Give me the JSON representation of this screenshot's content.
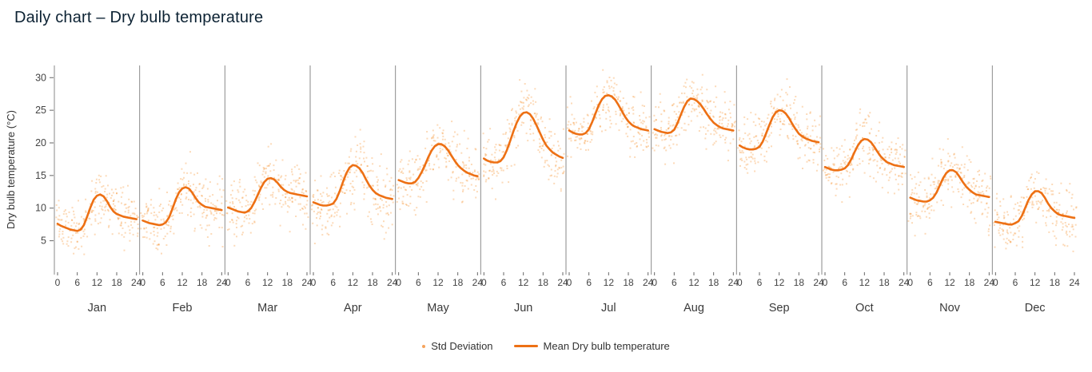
{
  "colors": {
    "title": "#0c2233",
    "axis_text": "#444444",
    "month_text": "#3a3a3a",
    "separator": "#8a8a8a",
    "tick": "#666666",
    "mean_line": "#ed7014",
    "scatter": "#f58518",
    "legend_text": "#333333"
  },
  "chart_data": {
    "type": "scatter",
    "title": "Daily chart – Dry bulb temperature",
    "xlabel": "",
    "ylabel": "Dry bulb temperature (°C)",
    "ylim": [
      0.3,
      31.5
    ],
    "yticks": [
      5,
      10,
      15,
      20,
      25,
      30
    ],
    "xticks": [
      0,
      6,
      12,
      18,
      24
    ],
    "grid": false,
    "legend_position": "bottom-center",
    "legend": {
      "std": "Std Deviation",
      "mean": "Mean Dry bulb temperature"
    },
    "hours": [
      0,
      1,
      2,
      3,
      4,
      5,
      6,
      7,
      8,
      9,
      10,
      11,
      12,
      13,
      14,
      15,
      16,
      17,
      18,
      19,
      20,
      21,
      22,
      23,
      24
    ],
    "months": [
      {
        "label": "Jan",
        "std": 2.1,
        "mean": [
          7.6,
          7.3,
          7.1,
          6.9,
          6.7,
          6.6,
          6.5,
          6.7,
          7.4,
          8.7,
          10.1,
          11.3,
          11.9,
          12.1,
          11.8,
          11.1,
          10.2,
          9.5,
          9.1,
          8.9,
          8.7,
          8.6,
          8.5,
          8.4,
          8.3
        ]
      },
      {
        "label": "Feb",
        "std": 2.2,
        "mean": [
          8.1,
          7.9,
          7.7,
          7.6,
          7.5,
          7.4,
          7.5,
          7.8,
          8.6,
          9.9,
          11.3,
          12.4,
          13.0,
          13.2,
          13.0,
          12.4,
          11.6,
          10.9,
          10.5,
          10.2,
          10.1,
          10.0,
          9.9,
          9.8,
          9.7
        ]
      },
      {
        "label": "Mar",
        "std": 2.3,
        "mean": [
          10.1,
          9.9,
          9.7,
          9.5,
          9.4,
          9.3,
          9.5,
          10.0,
          10.9,
          12.0,
          13.1,
          14.0,
          14.5,
          14.6,
          14.4,
          13.9,
          13.3,
          12.8,
          12.5,
          12.3,
          12.2,
          12.1,
          12.0,
          11.9,
          11.8
        ]
      },
      {
        "label": "Apr",
        "std": 2.5,
        "mean": [
          10.9,
          10.7,
          10.5,
          10.4,
          10.4,
          10.5,
          10.7,
          11.4,
          12.6,
          14.0,
          15.3,
          16.2,
          16.6,
          16.5,
          16.1,
          15.4,
          14.4,
          13.5,
          12.8,
          12.3,
          12.0,
          11.8,
          11.6,
          11.5,
          11.4
        ]
      },
      {
        "label": "May",
        "std": 2.3,
        "mean": [
          14.3,
          14.1,
          13.9,
          13.8,
          13.8,
          14.0,
          14.6,
          15.5,
          16.6,
          17.8,
          18.8,
          19.5,
          19.8,
          19.8,
          19.5,
          18.9,
          18.1,
          17.3,
          16.6,
          16.1,
          15.7,
          15.4,
          15.2,
          15.0,
          14.9
        ]
      },
      {
        "label": "Jun",
        "std": 2.4,
        "mean": [
          17.6,
          17.3,
          17.1,
          17.0,
          17.0,
          17.2,
          17.8,
          18.9,
          20.3,
          21.8,
          23.1,
          24.1,
          24.6,
          24.7,
          24.4,
          23.7,
          22.7,
          21.6,
          20.5,
          19.6,
          19.0,
          18.5,
          18.2,
          17.9,
          17.7
        ]
      },
      {
        "label": "Jul",
        "std": 2.1,
        "mean": [
          21.9,
          21.6,
          21.4,
          21.3,
          21.3,
          21.5,
          22.1,
          23.2,
          24.5,
          25.8,
          26.7,
          27.2,
          27.3,
          27.1,
          26.6,
          25.8,
          24.9,
          24.0,
          23.3,
          22.8,
          22.5,
          22.3,
          22.1,
          22.0,
          21.9
        ]
      },
      {
        "label": "Aug",
        "std": 2.2,
        "mean": [
          22.1,
          21.9,
          21.7,
          21.6,
          21.5,
          21.6,
          22.0,
          23.0,
          24.3,
          25.5,
          26.4,
          26.8,
          26.7,
          26.4,
          25.9,
          25.2,
          24.4,
          23.7,
          23.1,
          22.7,
          22.4,
          22.2,
          22.1,
          22.0,
          21.9
        ]
      },
      {
        "label": "Sep",
        "std": 2.1,
        "mean": [
          19.6,
          19.3,
          19.1,
          19.0,
          19.0,
          19.1,
          19.4,
          20.2,
          21.4,
          22.7,
          23.9,
          24.7,
          25.0,
          24.9,
          24.5,
          23.8,
          22.9,
          22.1,
          21.4,
          21.0,
          20.7,
          20.5,
          20.3,
          20.2,
          20.1
        ]
      },
      {
        "label": "Oct",
        "std": 2.1,
        "mean": [
          16.3,
          16.1,
          15.9,
          15.8,
          15.8,
          15.9,
          16.1,
          16.6,
          17.5,
          18.6,
          19.6,
          20.3,
          20.6,
          20.5,
          20.1,
          19.4,
          18.6,
          17.9,
          17.4,
          17.0,
          16.8,
          16.6,
          16.5,
          16.4,
          16.3
        ]
      },
      {
        "label": "Nov",
        "std": 2.2,
        "mean": [
          11.6,
          11.4,
          11.2,
          11.1,
          11.0,
          11.0,
          11.2,
          11.6,
          12.4,
          13.5,
          14.6,
          15.4,
          15.8,
          15.8,
          15.5,
          14.8,
          14.0,
          13.3,
          12.8,
          12.4,
          12.1,
          12.0,
          11.9,
          11.8,
          11.7
        ]
      },
      {
        "label": "Dec",
        "std": 2.1,
        "mean": [
          7.9,
          7.8,
          7.7,
          7.6,
          7.5,
          7.5,
          7.7,
          8.0,
          8.8,
          10.0,
          11.2,
          12.1,
          12.6,
          12.6,
          12.3,
          11.6,
          10.7,
          10.0,
          9.5,
          9.1,
          8.9,
          8.8,
          8.7,
          8.6,
          8.5
        ]
      }
    ]
  }
}
